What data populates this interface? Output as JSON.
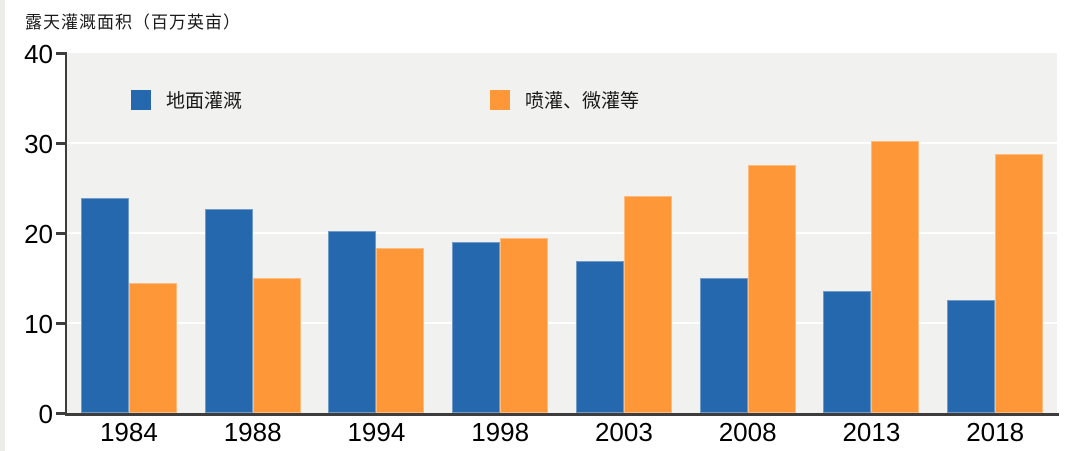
{
  "chart_data": {
    "type": "bar",
    "title": "露天灌溉面积（百万英亩）",
    "categories": [
      "1984",
      "1988",
      "1994",
      "1998",
      "2003",
      "2008",
      "2013",
      "2018"
    ],
    "series": [
      {
        "name": "地面灌溉",
        "color": "#2568ad",
        "values": [
          23.9,
          22.7,
          20.2,
          19.0,
          16.9,
          15.0,
          13.6,
          12.6
        ]
      },
      {
        "name": "喷灌、微灌等",
        "color": "#fd9738",
        "values": [
          14.5,
          15.0,
          18.3,
          19.5,
          24.1,
          27.6,
          30.2,
          28.8
        ]
      }
    ],
    "xlabel": "",
    "ylabel": "",
    "ylim": [
      0,
      40
    ],
    "yticks": [
      0,
      10,
      20,
      30,
      40
    ],
    "grid": true,
    "gridline_color": "#ffffff",
    "plot_bg": "#f1f1ef",
    "axis_color": "#3d3d3d",
    "legend_position": "top-inside"
  }
}
